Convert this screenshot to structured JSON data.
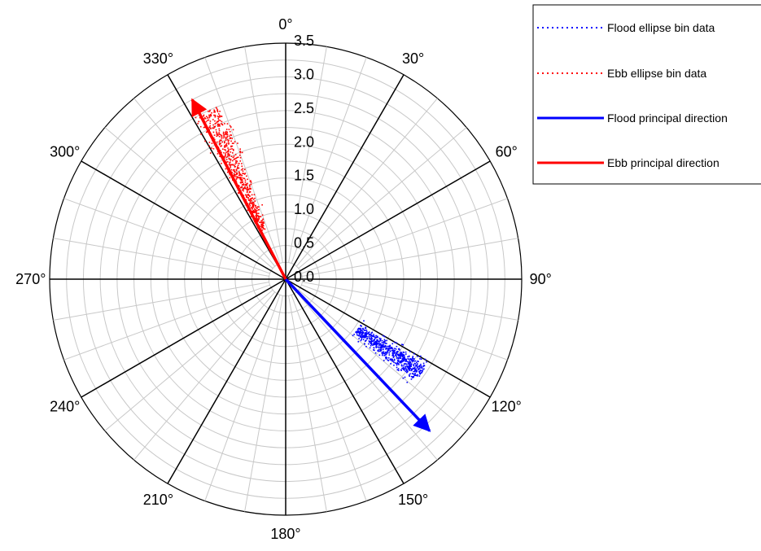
{
  "chart_data": {
    "type": "scatter",
    "coordinate_system": "polar",
    "angle_direction": "clockwise",
    "zero_angle": "top",
    "angle_ticks": [
      "0°",
      "30°",
      "60°",
      "90°",
      "120°",
      "150°",
      "180°",
      "210°",
      "240°",
      "270°",
      "300°",
      "330°"
    ],
    "radial_ticks": [
      "0.0",
      "0.5",
      "1.0",
      "1.5",
      "2.0",
      "2.5",
      "3.0",
      "3.5"
    ],
    "rlim": [
      0,
      3.5
    ],
    "grid": true,
    "legend_position": "top-right",
    "series": [
      {
        "name": "Flood ellipse bin data",
        "kind": "scatter",
        "color": "#0000ff",
        "center_theta_deg": 124.8,
        "theta_spread_deg": 3.5,
        "r_range": [
          1.3,
          2.45
        ],
        "n_points": 650
      },
      {
        "name": "Ebb ellipse bin data",
        "kind": "scatter",
        "color": "#ff0000",
        "center_theta_deg": 335.5,
        "theta_spread_deg": 4.0,
        "r_range": [
          0.8,
          2.75
        ],
        "n_points": 600
      },
      {
        "name": "Flood principal direction",
        "kind": "arrow",
        "color": "#0000ff",
        "theta_deg": 136.5,
        "r": 3.1
      },
      {
        "name": "Ebb principal direction",
        "kind": "arrow",
        "color": "#ff0000",
        "theta_deg": 332.5,
        "r": 3.0
      }
    ]
  }
}
